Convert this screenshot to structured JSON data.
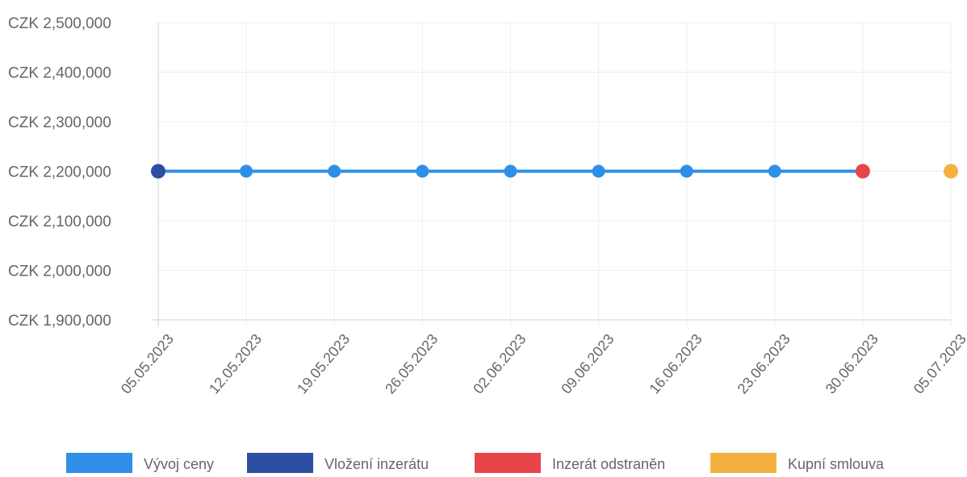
{
  "chart_data": {
    "type": "line",
    "y_tick_labels": [
      "CZK 2,500,000",
      "CZK 2,400,000",
      "CZK 2,300,000",
      "CZK 2,200,000",
      "CZK 2,100,000",
      "CZK 2,000,000",
      "CZK 1,900,000"
    ],
    "y_ticks": [
      2500000,
      2400000,
      2300000,
      2200000,
      2100000,
      2000000,
      1900000
    ],
    "ylim": [
      1900000,
      2500000
    ],
    "categories": [
      "05.05.2023",
      "12.05.2023",
      "19.05.2023",
      "26.05.2023",
      "02.06.2023",
      "09.06.2023",
      "16.06.2023",
      "23.06.2023",
      "30.06.2023",
      "05.07.2023"
    ],
    "grid": true,
    "legend_position": "bottom",
    "series": [
      {
        "name": "Vývoj ceny",
        "color": "#2f8fe6",
        "values": [
          2200000,
          2200000,
          2200000,
          2200000,
          2200000,
          2200000,
          2200000,
          2200000,
          2200000,
          null
        ]
      }
    ],
    "events": [
      {
        "name": "Vložení inzerátu",
        "color": "#2d4fa3",
        "category": "05.05.2023",
        "value": 2200000
      },
      {
        "name": "Inzerát odstraněn",
        "color": "#e8454a",
        "category": "30.06.2023",
        "value": 2200000
      },
      {
        "name": "Kupní smlouva",
        "color": "#f5b13f",
        "category": "05.07.2023",
        "value": 2200000
      }
    ],
    "legend": [
      {
        "label": "Vývoj ceny",
        "color": "#2f8fe6"
      },
      {
        "label": "Vložení inzerátu",
        "color": "#2d4fa3"
      },
      {
        "label": "Inzerát odstraněn",
        "color": "#e8454a"
      },
      {
        "label": "Kupní smlouva",
        "color": "#f5b13f"
      }
    ]
  }
}
